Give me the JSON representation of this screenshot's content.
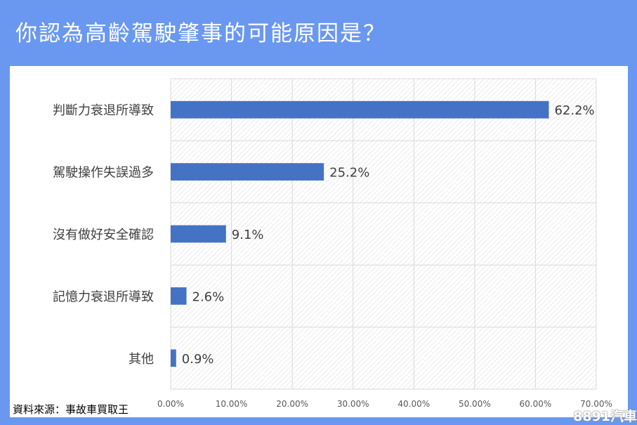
{
  "title": "你認為高齡駕駛肇事的可能原因是？",
  "source": "資料來源：事故車買取王",
  "watermark": "8891汽車",
  "colors": {
    "background": "#6a98f0",
    "bar": "#4472c4",
    "grid": "#d9d9d9"
  },
  "chart_data": {
    "type": "bar",
    "orientation": "horizontal",
    "title": "",
    "xlabel": "",
    "ylabel": "",
    "categories": [
      "判斷力衰退所導致",
      "駕駛操作失誤過多",
      "沒有做好安全確認",
      "記憶力衰退所導致",
      "其他"
    ],
    "values": [
      62.2,
      25.2,
      9.1,
      2.6,
      0.9
    ],
    "data_labels": [
      "62.2%",
      "25.2%",
      "9.1%",
      "2.6%",
      "0.9%"
    ],
    "xlim": [
      0,
      70
    ],
    "x_ticks": [
      0,
      10,
      20,
      30,
      40,
      50,
      60,
      70
    ],
    "x_tick_labels": [
      "0.00%",
      "10.00%",
      "20.00%",
      "30.00%",
      "40.00%",
      "50.00%",
      "60.00%",
      "70.00%"
    ],
    "grid": true,
    "legend": "none"
  }
}
